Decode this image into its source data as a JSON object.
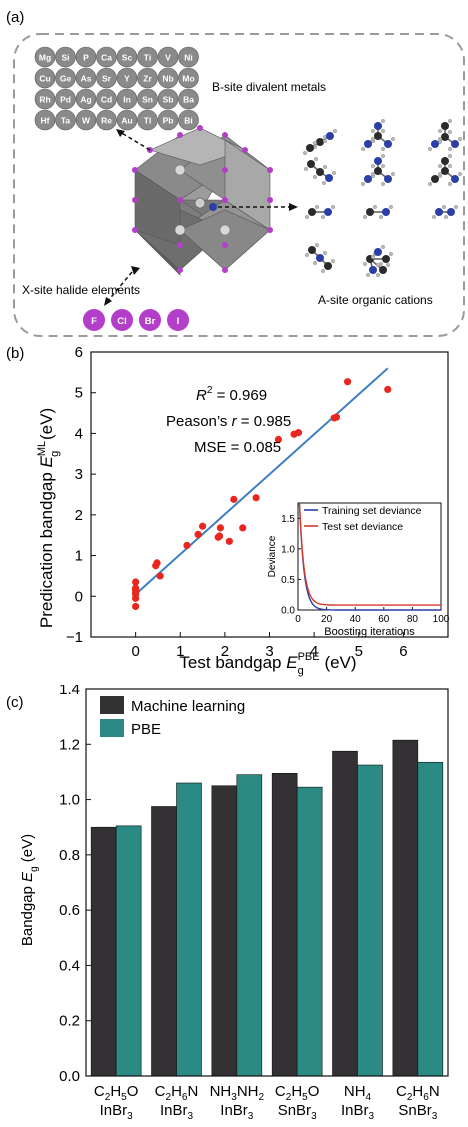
{
  "panels": {
    "a": {
      "label": "(a)",
      "b_site_title": "B-site divalent metals",
      "x_site_title": "X-site halide elements",
      "a_site_title": "A-site organic cations",
      "b_site_elements": [
        [
          "Mg",
          "Si",
          "P",
          "Ca",
          "Sc",
          "Ti",
          "V",
          "Ni"
        ],
        [
          "Cu",
          "Ge",
          "As",
          "Sr",
          "Y",
          "Zr",
          "Nb",
          "Mo"
        ],
        [
          "Rh",
          "Pd",
          "Ag",
          "Cd",
          "In",
          "Sn",
          "Sb",
          "Ba"
        ],
        [
          "Hf",
          "Ta",
          "W",
          "Re",
          "Au",
          "Tl",
          "Pb",
          "Bi"
        ]
      ],
      "halides": [
        "F",
        "Cl",
        "Br",
        "I"
      ],
      "colors": {
        "metal_sphere": "#8a8a8a",
        "halide_sphere": "#b23ec9",
        "nitrogen": "#2b3fa6",
        "carbon": "#2b2b2b",
        "octahedron": "#777777"
      }
    },
    "b": {
      "label": "(b)",
      "ylabel_main": "Predication bandgap ",
      "ylabel_sym": "E",
      "ylabel_sub": "g",
      "ylabel_sup": "ML",
      "ylabel_unit": " (eV)",
      "xlabel_main": "Test bandgap ",
      "xlabel_sym": "E",
      "xlabel_sub": "g",
      "xlabel_sup": "PBE",
      "xlabel_unit": " (eV)",
      "stat_r2_sym": "R",
      "stat_r2_sup": "2",
      "stat_r2_val": " = 0.969",
      "stat_pearson": "Peason’s ",
      "stat_pearson_sym": "r",
      "stat_pearson_val": " = 0.985",
      "stat_mse": "MSE = 0.085",
      "colors": {
        "points": "#e8271f",
        "fit": "#3f7ec5"
      }
    },
    "c": {
      "label": "(c)",
      "ylabel_main": "Bandgap ",
      "ylabel_sym": "E",
      "ylabel_sub": "g",
      "ylabel_unit": " (eV)",
      "legend": [
        "Machine learning",
        "PBE"
      ],
      "colors": {
        "ml": "#333133",
        "pbe": "#2b8a84"
      }
    }
  },
  "chart_data": [
    {
      "type": "scatter",
      "panel": "b",
      "xlim": [
        -1,
        7
      ],
      "ylim": [
        -1,
        6
      ],
      "xticks": [
        0,
        1,
        2,
        3,
        4,
        5,
        6
      ],
      "yticks": [
        -1,
        0,
        1,
        2,
        3,
        4,
        5,
        6
      ],
      "points": [
        [
          0,
          -0.25
        ],
        [
          0,
          -0.05
        ],
        [
          0,
          0.05
        ],
        [
          0,
          0.1
        ],
        [
          0,
          0.15
        ],
        [
          0,
          0.2
        ],
        [
          0,
          0.35
        ],
        [
          0.45,
          0.75
        ],
        [
          0.48,
          0.82
        ],
        [
          0.55,
          0.5
        ],
        [
          1.15,
          1.25
        ],
        [
          1.4,
          1.52
        ],
        [
          1.5,
          1.72
        ],
        [
          1.85,
          1.45
        ],
        [
          1.88,
          1.48
        ],
        [
          1.9,
          1.68
        ],
        [
          2.1,
          1.35
        ],
        [
          2.2,
          2.38
        ],
        [
          2.4,
          1.68
        ],
        [
          2.7,
          2.42
        ],
        [
          3.2,
          3.85
        ],
        [
          3.55,
          3.98
        ],
        [
          3.65,
          4.02
        ],
        [
          4.45,
          4.38
        ],
        [
          4.5,
          4.4
        ],
        [
          4.75,
          5.27
        ],
        [
          5.65,
          5.08
        ]
      ],
      "fit_line": {
        "x": [
          0,
          5.65
        ],
        "y": [
          0.05,
          5.6
        ]
      },
      "inset": {
        "type": "line",
        "xlabel": "Boosting iterations",
        "ylabel": "Deviance",
        "xlim": [
          0,
          100
        ],
        "ylim": [
          0,
          1.75
        ],
        "xticks": [
          0,
          20,
          40,
          60,
          80,
          100
        ],
        "yticks": [
          0.0,
          0.5,
          1.0,
          1.5
        ],
        "series": [
          {
            "name": "Training set deviance",
            "color": "#2a3fa0",
            "floor": 0.0
          },
          {
            "name": "Test set deviance",
            "color": "#d63a2b",
            "floor": 0.08
          }
        ]
      }
    },
    {
      "type": "bar",
      "panel": "c",
      "categories": [
        {
          "top_pre": "C",
          "top": [
            [
              "2",
              "H"
            ],
            [
              "5",
              "O"
            ]
          ],
          "bottom": "InBr",
          "bsub": "3"
        },
        {
          "top_pre": "C",
          "top": [
            [
              "2",
              "H"
            ],
            [
              "6",
              "N"
            ]
          ],
          "bottom": "InBr",
          "bsub": "3"
        },
        {
          "top_pre": "NH",
          "top": [
            [
              "3",
              "NH"
            ],
            [
              "2",
              ""
            ]
          ],
          "bottom": "InBr",
          "bsub": "3"
        },
        {
          "top_pre": "C",
          "top": [
            [
              "2",
              "H"
            ],
            [
              "5",
              "O"
            ]
          ],
          "bottom": "SnBr",
          "bsub": "3"
        },
        {
          "top_pre": "NH",
          "top": [
            [
              "4",
              ""
            ]
          ],
          "bottom": "InBr",
          "bsub": "3"
        },
        {
          "top_pre": "C",
          "top": [
            [
              "2",
              "H"
            ],
            [
              "6",
              "N"
            ]
          ],
          "bottom": "SnBr",
          "bsub": "3"
        }
      ],
      "ylim": [
        0,
        1.4
      ],
      "yticks": [
        0.0,
        0.2,
        0.4,
        0.6,
        0.8,
        1.0,
        1.2,
        1.4
      ],
      "series": [
        {
          "name": "Machine learning",
          "values": [
            0.9,
            0.975,
            1.05,
            1.095,
            1.175,
            1.215
          ]
        },
        {
          "name": "PBE",
          "values": [
            0.905,
            1.06,
            1.09,
            1.045,
            1.125,
            1.135
          ]
        }
      ]
    }
  ]
}
